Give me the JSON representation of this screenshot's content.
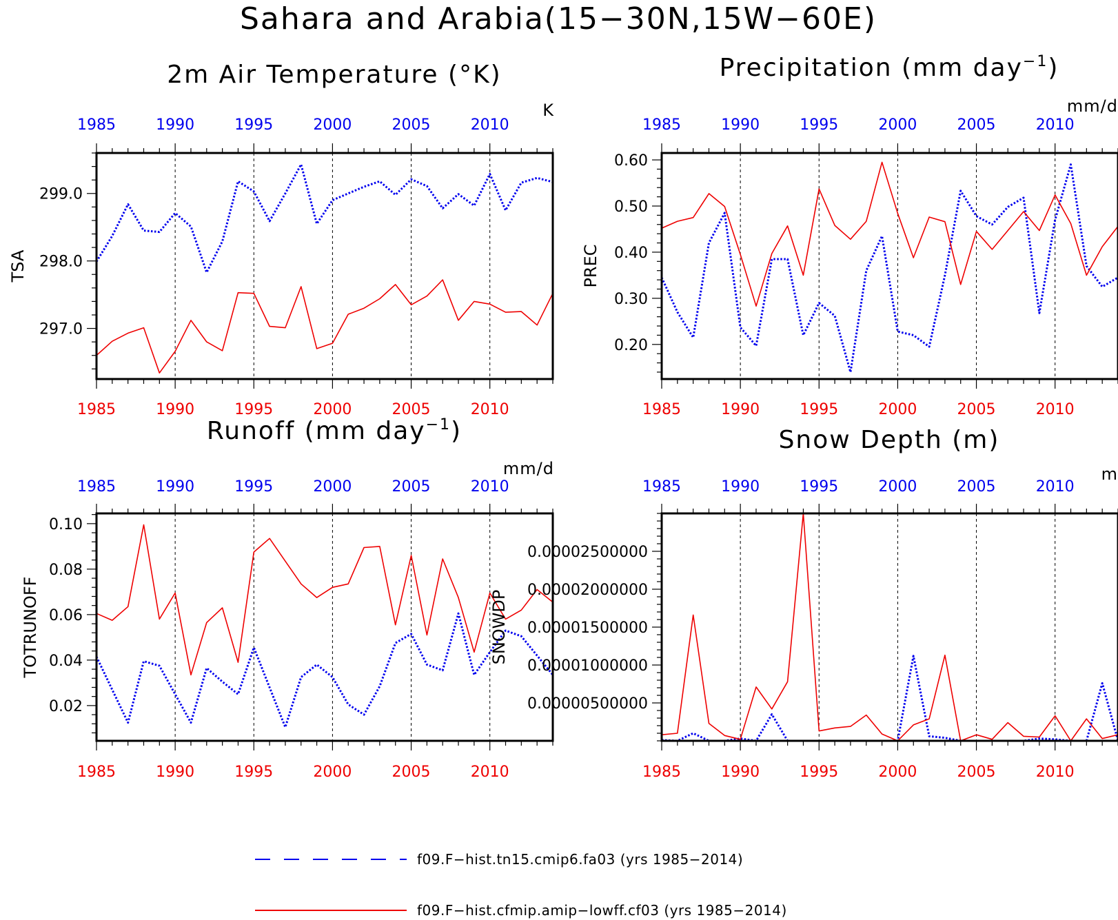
{
  "page_title": "Sahara and Arabia(15−30N,15W−60E)",
  "colors": {
    "blue": "#0000ee",
    "red": "#ee0000",
    "axis": "#000000"
  },
  "legend": {
    "items": [
      {
        "label": "f09.F−hist.tn15.cmip6.fa03 (yrs 1985−2014)",
        "color": "#0000ee",
        "style": "dashed"
      },
      {
        "label": "f09.F−hist.cfmip.amip−lowff.cf03 (yrs 1985−2014)",
        "color": "#ee0000",
        "style": "solid"
      }
    ]
  },
  "chart_data": [
    {
      "type": "line",
      "title": "2m Air Temperature (°K)",
      "ylabel": "TSA",
      "units": "K",
      "xlim": [
        1985,
        2014
      ],
      "ylim": [
        296.25,
        299.6
      ],
      "yticks": [
        297.0,
        298.0,
        299.0
      ],
      "ytick_labels": [
        "297.0",
        "298.0",
        "299.0"
      ],
      "xticks": [
        1985,
        1990,
        1995,
        2000,
        2005,
        2010
      ],
      "x": [
        1985,
        1986,
        1987,
        1988,
        1989,
        1990,
        1991,
        1992,
        1993,
        1994,
        1995,
        1996,
        1997,
        1998,
        1999,
        2000,
        2001,
        2002,
        2003,
        2004,
        2005,
        2006,
        2007,
        2008,
        2009,
        2010,
        2011,
        2012,
        2013,
        2014
      ],
      "series": [
        {
          "values": [
            297.99,
            298.37,
            298.84,
            298.45,
            298.43,
            298.71,
            298.51,
            297.83,
            298.29,
            299.18,
            299.03,
            298.59,
            299.0,
            299.43,
            298.55,
            298.9,
            299.0,
            299.1,
            299.18,
            298.98,
            299.21,
            299.11,
            298.78,
            298.99,
            298.82,
            299.29,
            298.75,
            299.16,
            299.23,
            299.17
          ],
          "color": "#0000ee",
          "style": "dotted"
        },
        {
          "values": [
            296.6,
            296.81,
            296.93,
            297.01,
            296.34,
            296.66,
            297.12,
            296.8,
            296.67,
            297.53,
            297.52,
            297.03,
            297.01,
            297.62,
            296.7,
            296.78,
            297.21,
            297.3,
            297.44,
            297.65,
            297.35,
            297.48,
            297.72,
            297.12,
            297.4,
            297.36,
            297.24,
            297.25,
            297.05,
            297.52
          ],
          "color": "#ee0000",
          "style": "solid"
        }
      ]
    },
    {
      "type": "line",
      "title": "Precipitation (mm day",
      "title_sup": "−1",
      "title_end": ")",
      "ylabel": "PREC",
      "units": "mm/d",
      "xlim": [
        1985,
        2014
      ],
      "ylim": [
        0.125,
        0.615
      ],
      "yticks": [
        0.2,
        0.3,
        0.4,
        0.5,
        0.6
      ],
      "ytick_labels": [
        "0.20",
        "0.30",
        "0.40",
        "0.50",
        "0.60"
      ],
      "xticks": [
        1985,
        1990,
        1995,
        2000,
        2005,
        2010
      ],
      "x": [
        1985,
        1986,
        1987,
        1988,
        1989,
        1990,
        1991,
        1992,
        1993,
        1994,
        1995,
        1996,
        1997,
        1998,
        1999,
        2000,
        2001,
        2002,
        2003,
        2004,
        2005,
        2006,
        2007,
        2008,
        2009,
        2010,
        2011,
        2012,
        2013,
        2014
      ],
      "series": [
        {
          "values": [
            0.345,
            0.27,
            0.215,
            0.42,
            0.485,
            0.237,
            0.197,
            0.385,
            0.385,
            0.22,
            0.29,
            0.262,
            0.14,
            0.36,
            0.435,
            0.228,
            0.22,
            0.195,
            0.35,
            0.533,
            0.478,
            0.46,
            0.498,
            0.518,
            0.268,
            0.47,
            0.59,
            0.37,
            0.325,
            0.345
          ],
          "color": "#0000ee",
          "style": "dotted"
        },
        {
          "values": [
            0.452,
            0.467,
            0.475,
            0.527,
            0.499,
            0.395,
            0.283,
            0.397,
            0.457,
            0.35,
            0.537,
            0.458,
            0.428,
            0.467,
            0.595,
            0.484,
            0.388,
            0.476,
            0.466,
            0.33,
            0.445,
            0.406,
            0.447,
            0.488,
            0.447,
            0.524,
            0.462,
            0.35,
            0.412,
            0.456
          ],
          "color": "#ee0000",
          "style": "solid"
        }
      ]
    },
    {
      "type": "line",
      "title": "Runoff (mm day",
      "title_sup": "−1",
      "title_end": ")",
      "ylabel": "TOTRUNOFF",
      "units": "mm/d",
      "xlim": [
        1985,
        2014
      ],
      "ylim": [
        0.0045,
        0.1045
      ],
      "yticks": [
        0.02,
        0.04,
        0.06,
        0.08,
        0.1
      ],
      "ytick_labels": [
        "0.02",
        "0.04",
        "0.06",
        "0.08",
        "0.10"
      ],
      "xticks": [
        1985,
        1990,
        1995,
        2000,
        2005,
        2010
      ],
      "x": [
        1985,
        1986,
        1987,
        1988,
        1989,
        1990,
        1991,
        1992,
        1993,
        1994,
        1995,
        1996,
        1997,
        1998,
        1999,
        2000,
        2001,
        2002,
        2003,
        2004,
        2005,
        2006,
        2007,
        2008,
        2009,
        2010,
        2011,
        2012,
        2013,
        2014
      ],
      "series": [
        {
          "values": [
            0.0415,
            0.027,
            0.0125,
            0.0395,
            0.0375,
            0.025,
            0.0125,
            0.0365,
            0.0305,
            0.025,
            0.0455,
            0.028,
            0.0105,
            0.0325,
            0.038,
            0.0325,
            0.0205,
            0.016,
            0.0285,
            0.0475,
            0.0515,
            0.038,
            0.0355,
            0.0605,
            0.0335,
            0.0435,
            0.053,
            0.0505,
            0.042,
            0.0335
          ],
          "color": "#0000ee",
          "style": "dotted"
        },
        {
          "values": [
            0.0605,
            0.0575,
            0.0635,
            0.0995,
            0.058,
            0.0695,
            0.0335,
            0.0565,
            0.063,
            0.039,
            0.0875,
            0.0935,
            0.0835,
            0.0735,
            0.0675,
            0.072,
            0.0735,
            0.0895,
            0.09,
            0.0555,
            0.086,
            0.051,
            0.0845,
            0.0675,
            0.0435,
            0.0695,
            0.058,
            0.062,
            0.071,
            0.0655
          ],
          "color": "#ee0000",
          "style": "solid"
        }
      ]
    },
    {
      "type": "line",
      "title": "Snow Depth (m)",
      "ylabel": "SNOWDP",
      "units": "m",
      "xlim": [
        1985,
        2014
      ],
      "ylim": [
        0,
        3e-05
      ],
      "yticks": [
        5e-06,
        1e-05,
        1.5e-05,
        2e-05,
        2.5e-05
      ],
      "ytick_labels": [
        "0.00000500000",
        "0.00001000000",
        "0.00001500000",
        "0.00002000000",
        "0.00002500000"
      ],
      "xticks": [
        1985,
        1990,
        1995,
        2000,
        2005,
        2010
      ],
      "x": [
        1985,
        1986,
        1987,
        1988,
        1989,
        1990,
        1991,
        1992,
        1993,
        1994,
        1995,
        1996,
        1997,
        1998,
        1999,
        2000,
        2001,
        2002,
        2003,
        2004,
        2005,
        2006,
        2007,
        2008,
        2009,
        2010,
        2011,
        2012,
        2013,
        2014
      ],
      "series": [
        {
          "values": [
            1e-07,
            0.0,
            1e-06,
            0.0,
            0.0,
            3e-07,
            0.0,
            3.5e-06,
            0.0,
            0.0,
            0.0,
            0.0,
            0.0,
            0.0,
            0.0,
            0.0,
            1.12e-05,
            6e-07,
            4e-07,
            0.0,
            0.0,
            0.0,
            0.0,
            0.0,
            3e-07,
            2e-07,
            0.0,
            0.0,
            7.6e-06,
            0.0
          ],
          "color": "#0000ee",
          "style": "dotted"
        },
        {
          "values": [
            8e-07,
            1e-06,
            1.66e-05,
            2.3e-06,
            7e-07,
            2e-07,
            7.1e-06,
            4.2e-06,
            7.8e-06,
            3e-05,
            1.3e-06,
            1.7e-06,
            1.9e-06,
            3.4e-06,
            9e-07,
            0.0,
            2.1e-06,
            2.9e-06,
            1.13e-05,
            0.0,
            8e-07,
            2e-07,
            2.4e-06,
            6e-07,
            5e-07,
            3.3e-06,
            0.0,
            2.9e-06,
            3e-07,
            8e-07
          ],
          "color": "#ee0000",
          "style": "solid"
        }
      ]
    }
  ]
}
